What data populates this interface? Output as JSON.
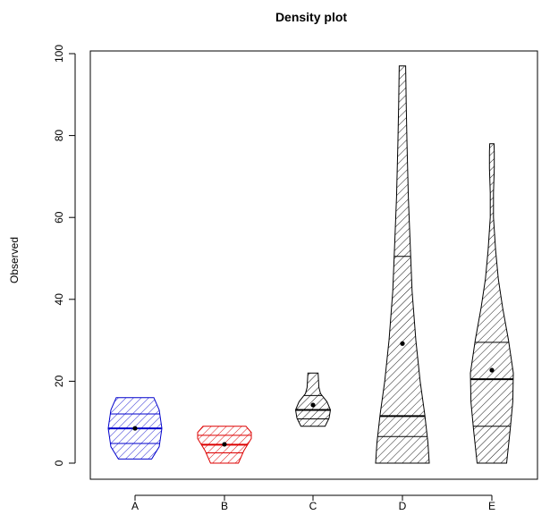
{
  "chart_data": {
    "type": "violin",
    "title": "Density plot",
    "xlabel": "",
    "ylabel": "Observed",
    "ylim": [
      0,
      100
    ],
    "yticks": [
      0,
      20,
      40,
      60,
      80,
      100
    ],
    "categories": [
      "A",
      "B",
      "C",
      "D",
      "E"
    ],
    "grid": false,
    "legend": "none",
    "fill": "diagonal hatching",
    "series": [
      {
        "category": "A",
        "color": "#0000cc",
        "min": 1,
        "q1": 4.8,
        "median": 8.5,
        "q3": 12,
        "max": 16,
        "mean": 8.5,
        "profile": [
          [
            1,
            0.62
          ],
          [
            4,
            0.9
          ],
          [
            8.5,
            1.0
          ],
          [
            13,
            0.9
          ],
          [
            16,
            0.7
          ]
        ]
      },
      {
        "category": "B",
        "color": "#dd0000",
        "min": 0,
        "q1": 2.5,
        "median": 4.5,
        "q3": 6.8,
        "max": 9,
        "mean": 4.6,
        "profile": [
          [
            0,
            0.52
          ],
          [
            3,
            0.72
          ],
          [
            6,
            1.0
          ],
          [
            7.5,
            1.0
          ],
          [
            9,
            0.8
          ]
        ]
      },
      {
        "category": "C",
        "color": "#000000",
        "min": 9,
        "q1": 10.8,
        "median": 13,
        "q3": 16.5,
        "max": 22,
        "mean": 14.2,
        "profile": [
          [
            9,
            0.45
          ],
          [
            11,
            0.6
          ],
          [
            13,
            0.65
          ],
          [
            15,
            0.52
          ],
          [
            17,
            0.28
          ],
          [
            18.5,
            0.22
          ],
          [
            22,
            0.19
          ]
        ]
      },
      {
        "category": "D",
        "color": "#000000",
        "min": 0,
        "q1": 6.5,
        "median": 11.5,
        "q3": 50.5,
        "max": 97,
        "mean": 29.2,
        "profile": [
          [
            0,
            1.0
          ],
          [
            5,
            0.95
          ],
          [
            12,
            0.83
          ],
          [
            20,
            0.66
          ],
          [
            30,
            0.5
          ],
          [
            42,
            0.36
          ],
          [
            55,
            0.28
          ],
          [
            65,
            0.22
          ],
          [
            78,
            0.17
          ],
          [
            88,
            0.14
          ],
          [
            97,
            0.12
          ]
        ]
      },
      {
        "category": "E",
        "color": "#000000",
        "min": 0,
        "q1": 9,
        "median": 20.5,
        "q3": 29.5,
        "max": 78,
        "mean": 22.7,
        "profile": [
          [
            0,
            0.55
          ],
          [
            8,
            0.68
          ],
          [
            15,
            0.78
          ],
          [
            22,
            0.8
          ],
          [
            30,
            0.62
          ],
          [
            38,
            0.4
          ],
          [
            45,
            0.24
          ],
          [
            52,
            0.14
          ],
          [
            60,
            0.06
          ],
          [
            66,
            0.06
          ],
          [
            72,
            0.09
          ],
          [
            76,
            0.09
          ],
          [
            78,
            0.08
          ]
        ]
      }
    ]
  }
}
